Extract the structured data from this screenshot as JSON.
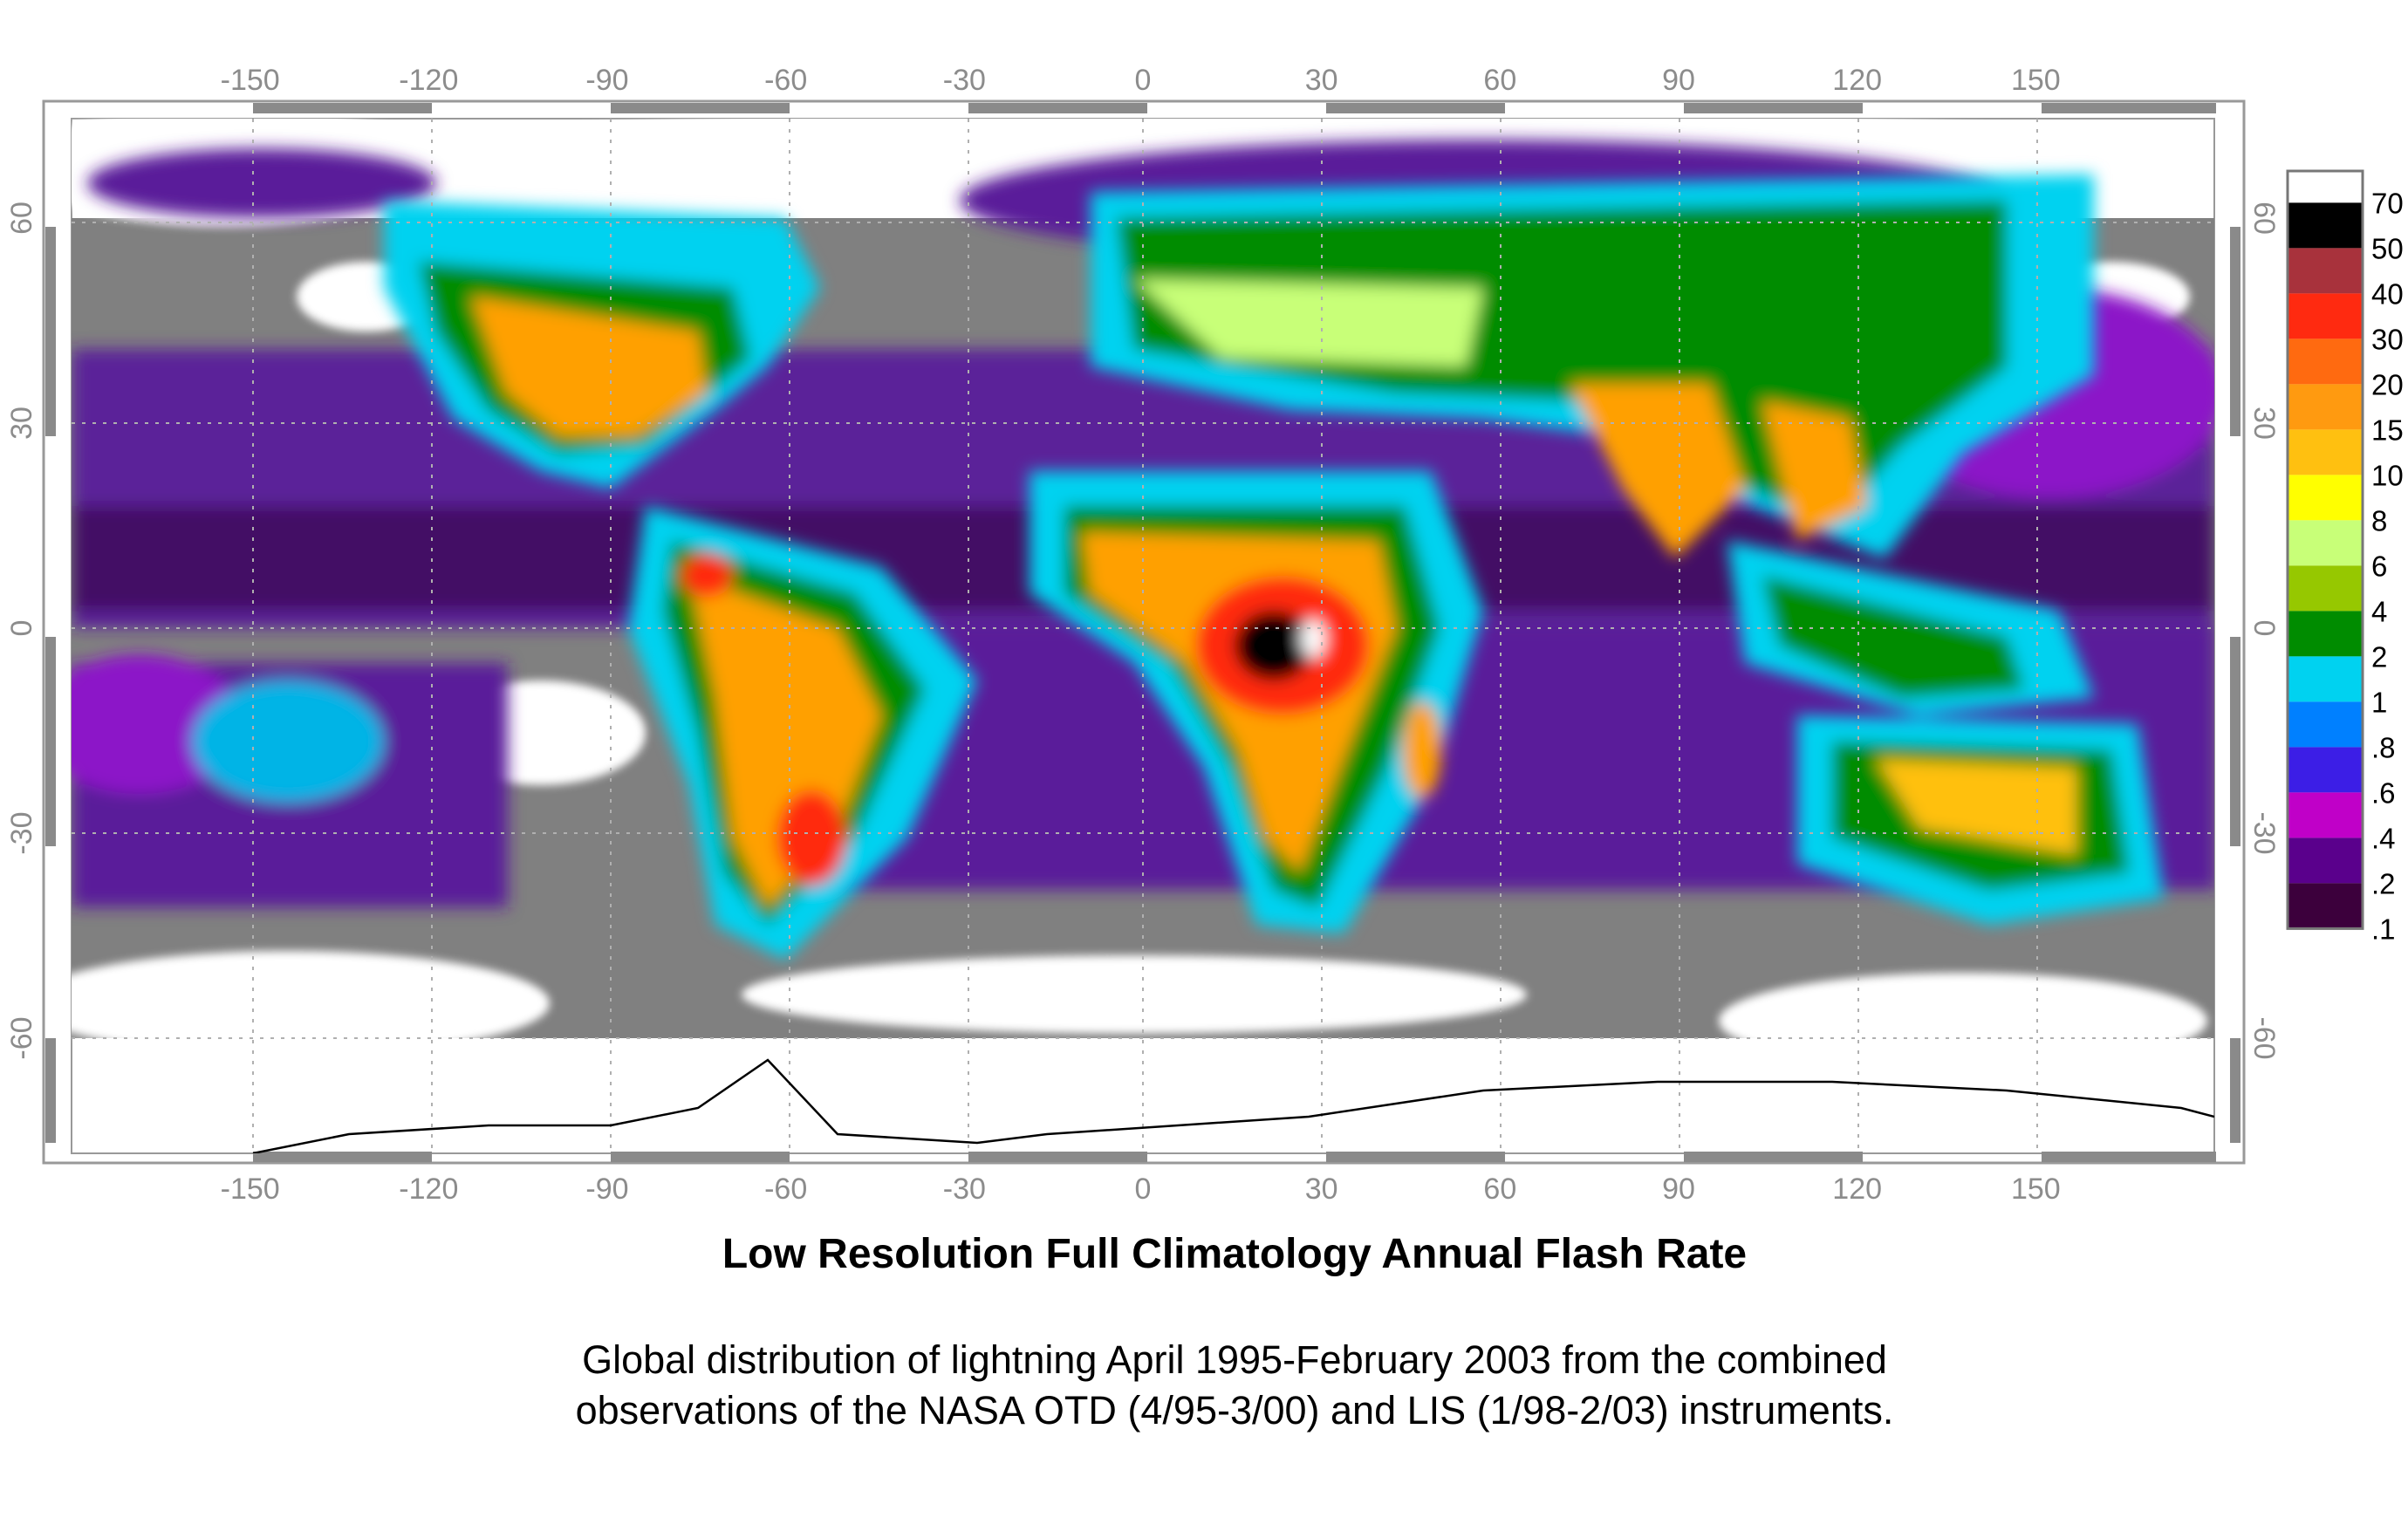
{
  "title": "Low Resolution Full Climatology Annual Flash Rate",
  "caption": {
    "line1": "Global distribution of lightning April 1995-February 2003 from the combined",
    "line2": "observations of the NASA OTD (4/95-3/00) and LIS (1/98-2/03) instruments."
  },
  "axes": {
    "longitude_ticks": [
      "-150",
      "-120",
      "-90",
      "-60",
      "-30",
      "0",
      "30",
      "60",
      "90",
      "120",
      "150"
    ],
    "longitude_values": [
      -150,
      -120,
      -90,
      -60,
      -30,
      0,
      30,
      60,
      90,
      120,
      150
    ],
    "latitude_ticks": [
      "60",
      "30",
      "0",
      "-30",
      "-60"
    ],
    "latitude_values": [
      60,
      30,
      0,
      -30,
      -60
    ]
  },
  "colorbar": {
    "labels": [
      "70",
      "50",
      "40",
      "30",
      "20",
      "15",
      "10",
      "8",
      "6",
      "4",
      "2",
      "1",
      ".8",
      ".6",
      ".4",
      ".2",
      ".1"
    ],
    "colors": [
      "#ffffff",
      "#000000",
      "#a8323c",
      "#ff2a10",
      "#ff6a10",
      "#ff9a10",
      "#ffc010",
      "#ffff00",
      "#c8ff78",
      "#96c800",
      "#008c00",
      "#00d2f0",
      "#0080ff",
      "#3c1ee6",
      "#c000c8",
      "#5a008c",
      "#3c003c"
    ]
  },
  "map_colors": {
    "background": "#808080",
    "ocean_low": "#5a1e9a",
    "ocean_mid": "#8c14c8",
    "land_low": "#00c8f0",
    "land_mid": "#008c00",
    "land_high": "#ffa000",
    "land_peak": "#ff2a10"
  }
}
